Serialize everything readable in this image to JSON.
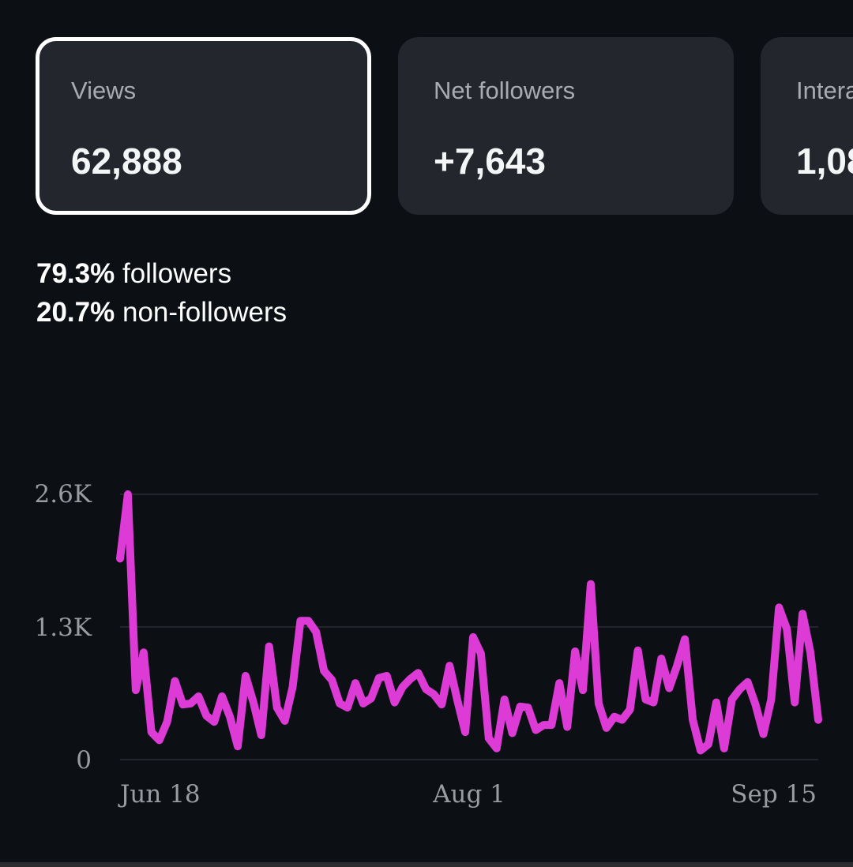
{
  "metric_cards": [
    {
      "label": "Views",
      "value": "62,888",
      "selected": true
    },
    {
      "label": "Net followers",
      "value": "+7,643",
      "selected": false
    },
    {
      "label": "Interactions",
      "value": "1,08",
      "selected": false
    }
  ],
  "audience_breakdown": {
    "followers_pct": "79.3%",
    "followers_label": "followers",
    "non_followers_pct": "20.7%",
    "non_followers_label": "non-followers"
  },
  "colors": {
    "line": "#dd3bd6",
    "background": "#0c0f14",
    "card": "#23262d"
  },
  "chart_data": {
    "type": "line",
    "y_ticks": [
      "2.6K",
      "1.3K",
      "0"
    ],
    "x_ticks": [
      "Jun 18",
      "Aug 1",
      "Sep 15"
    ],
    "ylim": [
      0,
      2600
    ],
    "grid": true,
    "series": [
      {
        "values": [
          1970,
          2600,
          680,
          1050,
          270,
          190,
          370,
          770,
          540,
          550,
          620,
          430,
          370,
          620,
          420,
          130,
          820,
          560,
          240,
          1110,
          510,
          380,
          710,
          1360,
          1360,
          1250,
          870,
          780,
          550,
          510,
          750,
          550,
          600,
          800,
          820,
          560,
          710,
          790,
          850,
          690,
          640,
          540,
          920,
          580,
          270,
          1200,
          1040,
          210,
          110,
          590,
          260,
          520,
          510,
          290,
          340,
          340,
          750,
          320,
          1060,
          680,
          1720,
          550,
          310,
          420,
          390,
          490,
          1070,
          590,
          560,
          990,
          700,
          920,
          1180,
          390,
          90,
          150,
          560,
          110,
          590,
          690,
          760,
          540,
          250,
          590,
          1490,
          1280,
          560,
          1430,
          1050,
          390
        ]
      }
    ]
  }
}
